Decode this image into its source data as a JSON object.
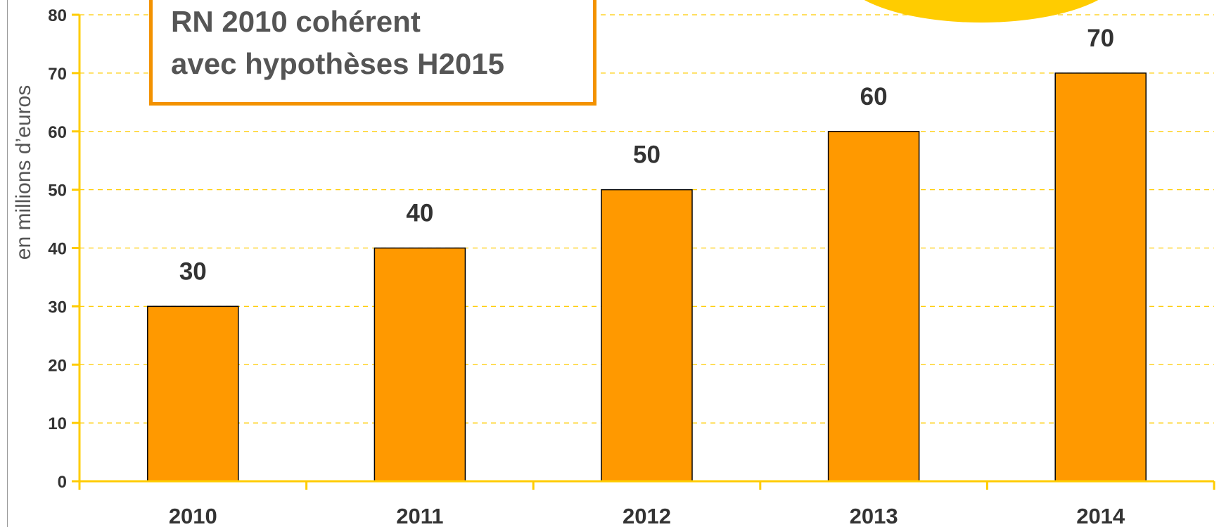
{
  "colors": {
    "bar": "#ff9900",
    "axis": "#ffcc00",
    "grid": "#ffcc00",
    "text": "#333333",
    "box_border": "#f39200"
  },
  "annotation": {
    "line1": "RN 2010 cohérent",
    "line2": "avec hypothèses H2015"
  },
  "chart_data": {
    "type": "bar",
    "categories": [
      "2010",
      "2011",
      "2012",
      "2013",
      "2014"
    ],
    "values": [
      30,
      40,
      50,
      60,
      70
    ],
    "data_labels": [
      "30",
      "40",
      "50",
      "60",
      "70"
    ],
    "title": "",
    "xlabel": "",
    "ylabel": "en millions d’euros",
    "ylim": [
      0,
      80
    ],
    "yticks": [
      0,
      10,
      20,
      30,
      40,
      50,
      60,
      70,
      80
    ],
    "grid": true,
    "legend": "none"
  }
}
